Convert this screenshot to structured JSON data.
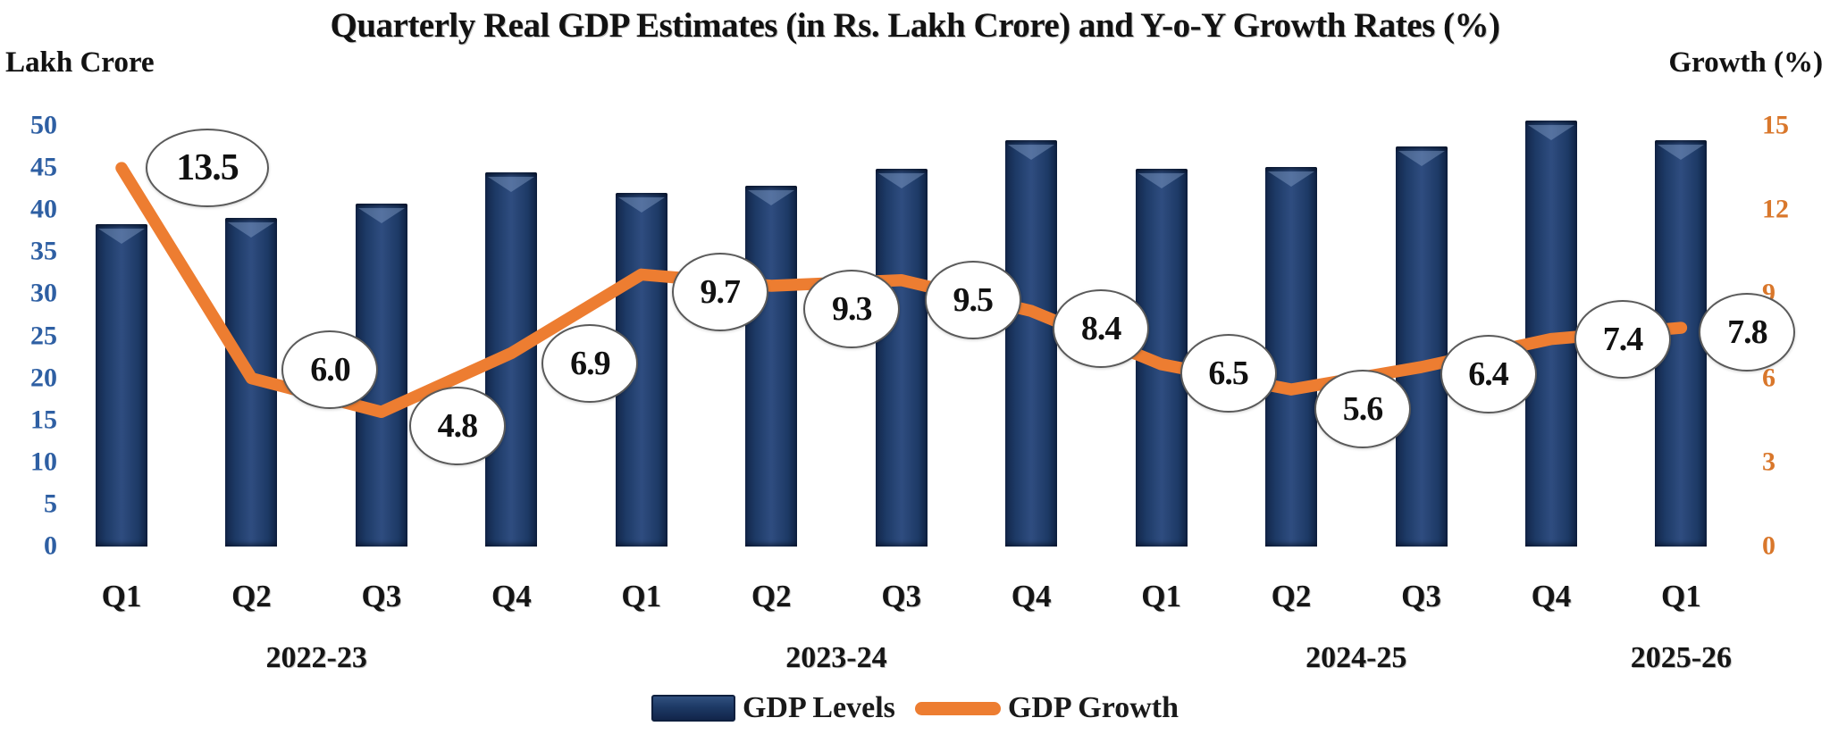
{
  "chart_data": {
    "type": "bar+line",
    "title": "Quarterly Real GDP Estimates (in Rs. Lakh Crore) and Y-o-Y Growth Rates (%)",
    "categories": [
      "Q1",
      "Q2",
      "Q3",
      "Q4",
      "Q1",
      "Q2",
      "Q3",
      "Q4",
      "Q1",
      "Q2",
      "Q3",
      "Q4",
      "Q1"
    ],
    "year_groups": [
      {
        "label": "2022-23",
        "from": 0,
        "to": 3
      },
      {
        "label": "2023-24",
        "from": 4,
        "to": 7
      },
      {
        "label": "2024-25",
        "from": 8,
        "to": 11
      },
      {
        "label": "2025-26",
        "from": 12,
        "to": 12
      }
    ],
    "series": [
      {
        "name": "GDP Levels",
        "type": "bar",
        "axis": "left",
        "color": "#1F3864",
        "values": [
          38.3,
          39.1,
          40.8,
          44.5,
          42.0,
          42.9,
          44.9,
          48.3,
          44.9,
          45.1,
          47.6,
          50.6,
          48.3
        ]
      },
      {
        "name": "GDP Growth",
        "type": "line",
        "axis": "right",
        "color": "#ED7D31",
        "values": [
          13.5,
          6.0,
          4.8,
          6.9,
          9.7,
          9.3,
          9.5,
          8.4,
          6.5,
          5.6,
          6.4,
          7.4,
          7.8
        ],
        "data_labels": [
          "13.5",
          "6.0",
          "4.8",
          "6.9",
          "9.7",
          "9.3",
          "9.5",
          "8.4",
          "6.5",
          "5.6",
          "6.4",
          "7.4",
          "7.8"
        ]
      }
    ],
    "left_axis": {
      "label": "Lakh Crore",
      "ticks": [
        0,
        5,
        10,
        15,
        20,
        25,
        30,
        35,
        40,
        45,
        50
      ],
      "range": [
        0,
        53
      ],
      "color": "#2E5FA3"
    },
    "right_axis": {
      "label": "Growth (%)",
      "ticks": [
        0,
        3,
        6,
        9,
        12,
        15
      ],
      "range": [
        0,
        15.9
      ],
      "color": "#D9772B"
    },
    "legend": {
      "position": "bottom",
      "entries": [
        "GDP Levels",
        "GDP Growth"
      ]
    },
    "grid": false
  }
}
